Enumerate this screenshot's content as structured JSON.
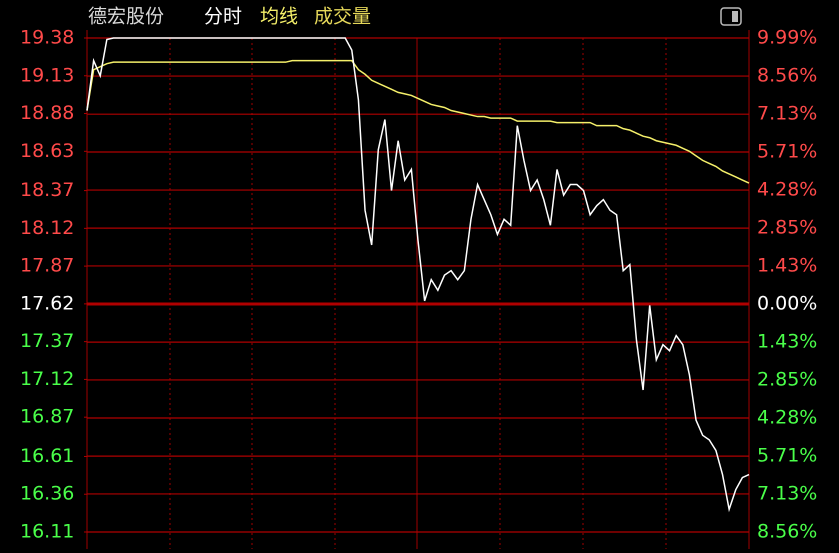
{
  "chart_data": {
    "type": "line",
    "title": "德宏股份",
    "subtitle": "分时",
    "indicator": "成交量",
    "ylim": [
      16.11,
      19.38
    ],
    "yticks": [
      19.38,
      19.13,
      18.88,
      18.63,
      18.37,
      18.12,
      17.87,
      17.62,
      17.37,
      17.12,
      16.87,
      16.61,
      16.36,
      16.11
    ],
    "y2lim": [
      -8.56,
      9.99
    ],
    "y2ticks": [
      {
        "value": 9.99,
        "label": "9.99%"
      },
      {
        "value": 8.56,
        "label": "8.56%"
      },
      {
        "value": 7.13,
        "label": "7.13%"
      },
      {
        "value": 5.71,
        "label": "5.71%"
      },
      {
        "value": 4.28,
        "label": "4.28%"
      },
      {
        "value": 2.85,
        "label": "2.85%"
      },
      {
        "value": 1.43,
        "label": "1.43%"
      },
      {
        "value": 0,
        "label": "0.00%"
      },
      {
        "value": -1.43,
        "label": "1.43%"
      },
      {
        "value": -2.85,
        "label": "2.85%"
      },
      {
        "value": -4.28,
        "label": "4.28%"
      },
      {
        "value": -5.71,
        "label": "5.71%"
      },
      {
        "value": -7.13,
        "label": "7.13%"
      },
      {
        "value": -8.56,
        "label": "8.56%"
      }
    ],
    "grid": true,
    "grid_color": "#b00000",
    "up_color": "#ff4a4a",
    "down_color": "#4aff4a",
    "flat_color": "#ffffff",
    "indicator_color": "#e6d85a",
    "series": [
      {
        "color": "#ffffff",
        "values": [
          18.9,
          19.23,
          19.13,
          19.37,
          19.38,
          19.38,
          19.38,
          19.38,
          19.38,
          19.38,
          19.38,
          19.38,
          19.38,
          19.38,
          19.38,
          19.38,
          19.38,
          19.38,
          19.38,
          19.38,
          19.38,
          19.38,
          19.38,
          19.38,
          19.38,
          19.38,
          19.38,
          19.38,
          19.38,
          19.38,
          19.38,
          19.38,
          19.38,
          19.38,
          19.38,
          19.38,
          19.38,
          19.38,
          19.38,
          19.38,
          19.3,
          18.97,
          18.24,
          18.01,
          18.64,
          18.84,
          18.37,
          18.7,
          18.44,
          18.51,
          18.04,
          17.64,
          17.78,
          17.71,
          17.81,
          17.84,
          17.78,
          17.84,
          18.18,
          18.41,
          18.31,
          18.21,
          18.08,
          18.18,
          18.14,
          18.8,
          18.57,
          18.37,
          18.44,
          18.31,
          18.14,
          18.51,
          18.34,
          18.41,
          18.41,
          18.37,
          18.21,
          18.27,
          18.31,
          18.24,
          18.21,
          17.84,
          17.88,
          17.38,
          17.05,
          17.61,
          17.25,
          17.35,
          17.31,
          17.41,
          17.35,
          17.15,
          16.85,
          16.75,
          16.72,
          16.65,
          16.49,
          16.26,
          16.39,
          16.47,
          16.49
        ]
      },
      {
        "name": "均线",
        "color": "#f5f06a",
        "values": [
          18.9,
          19.17,
          19.19,
          19.21,
          19.22,
          19.22,
          19.22,
          19.22,
          19.22,
          19.22,
          19.22,
          19.22,
          19.22,
          19.22,
          19.22,
          19.22,
          19.22,
          19.22,
          19.22,
          19.22,
          19.22,
          19.22,
          19.22,
          19.22,
          19.22,
          19.22,
          19.22,
          19.22,
          19.22,
          19.22,
          19.22,
          19.23,
          19.23,
          19.23,
          19.23,
          19.23,
          19.23,
          19.23,
          19.23,
          19.23,
          19.23,
          19.17,
          19.14,
          19.1,
          19.08,
          19.06,
          19.04,
          19.02,
          19.01,
          19.0,
          18.98,
          18.96,
          18.94,
          18.93,
          18.92,
          18.9,
          18.89,
          18.88,
          18.87,
          18.86,
          18.86,
          18.85,
          18.85,
          18.85,
          18.85,
          18.83,
          18.83,
          18.83,
          18.83,
          18.83,
          18.83,
          18.82,
          18.82,
          18.82,
          18.82,
          18.82,
          18.82,
          18.8,
          18.8,
          18.8,
          18.8,
          18.78,
          18.77,
          18.75,
          18.73,
          18.72,
          18.7,
          18.69,
          18.68,
          18.67,
          18.65,
          18.63,
          18.6,
          18.57,
          18.55,
          18.53,
          18.5,
          18.48,
          18.46,
          18.44,
          18.42
        ]
      }
    ]
  }
}
